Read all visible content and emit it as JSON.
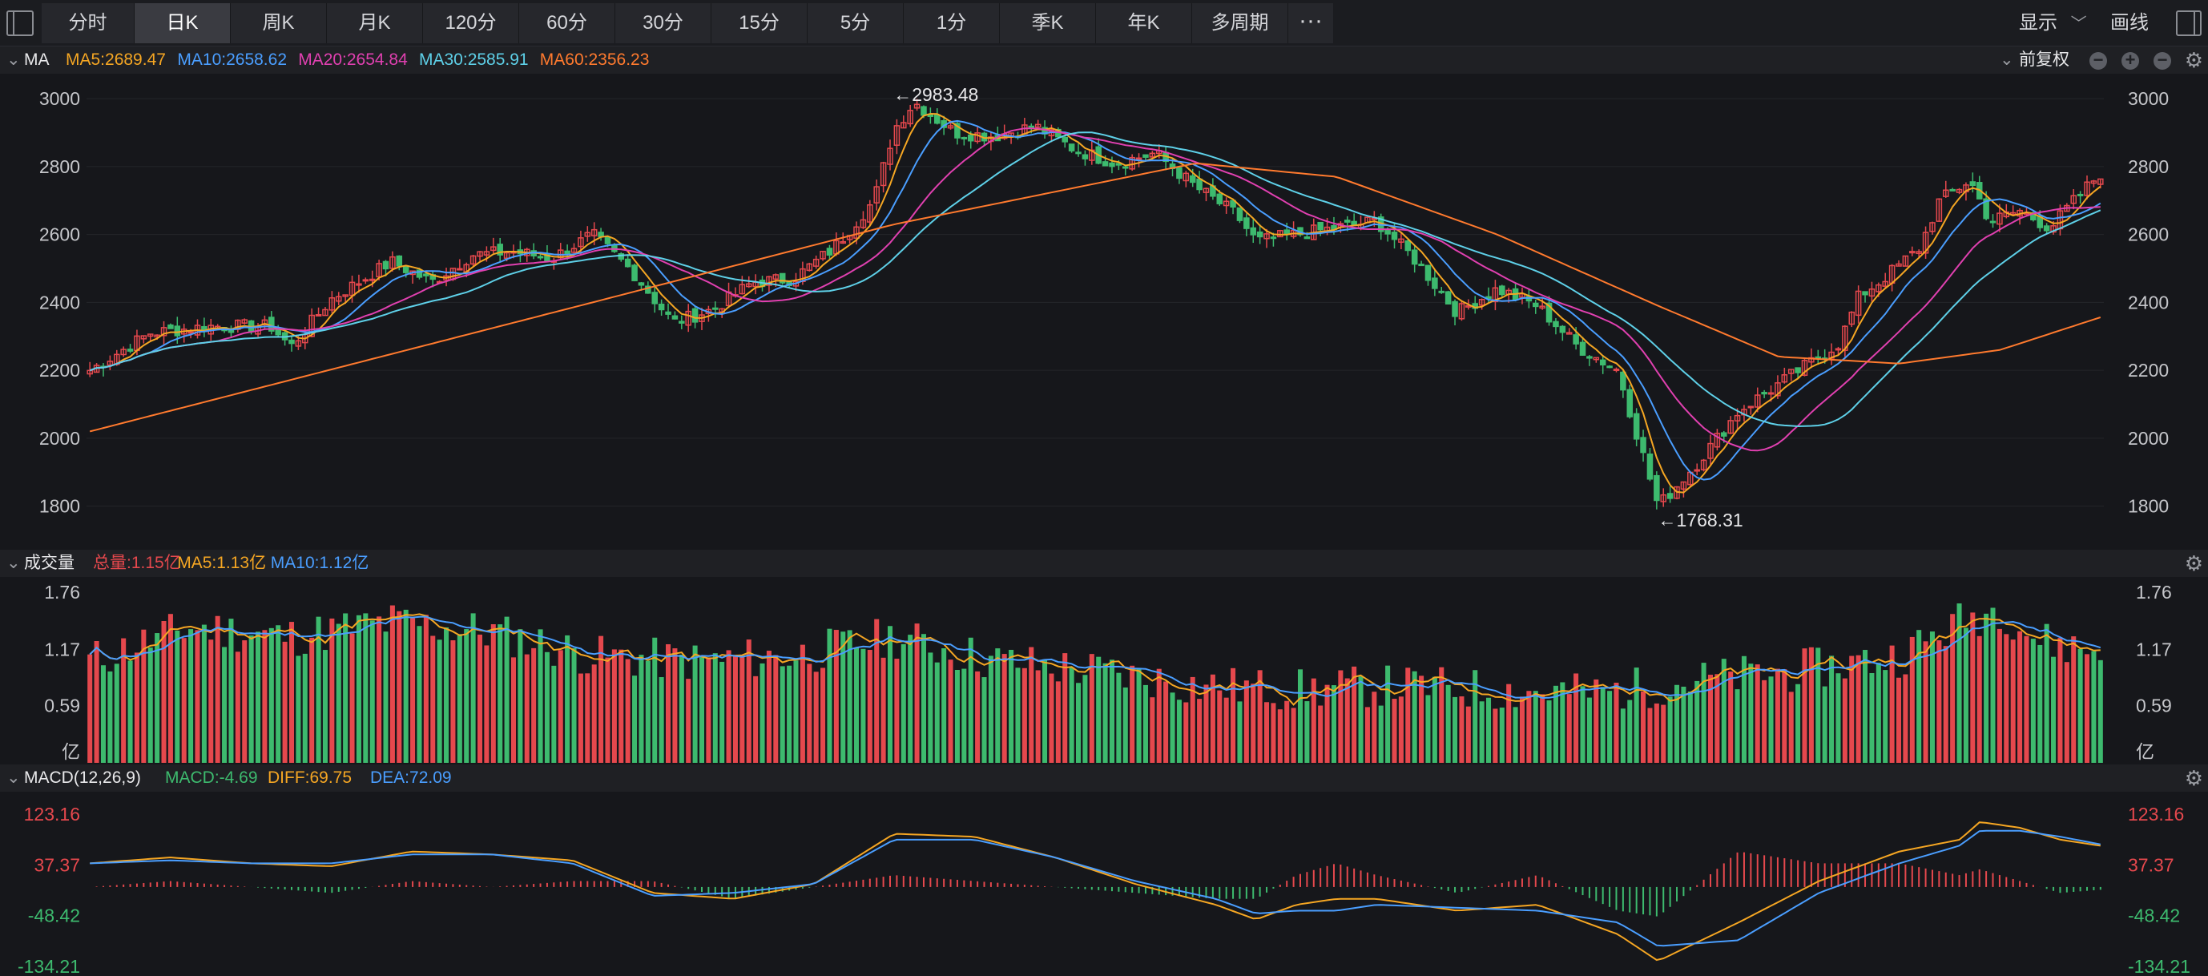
{
  "toolbar": {
    "tabs": [
      "分时",
      "日K",
      "周K",
      "月K",
      "120分",
      "60分",
      "30分",
      "15分",
      "5分",
      "1分",
      "季K",
      "年K",
      "多周期"
    ],
    "active": "日K",
    "more_icon": "ellipsis-icon",
    "display_label": "显示",
    "draw_label": "画线"
  },
  "main_panel": {
    "indicator": "MA",
    "legend": [
      {
        "label": "MA5:2689.47",
        "color": "#f5a623"
      },
      {
        "label": "MA10:2658.62",
        "color": "#4a9eff"
      },
      {
        "label": "MA20:2654.84",
        "color": "#e040b0"
      },
      {
        "label": "MA30:2585.91",
        "color": "#5ed0e8"
      },
      {
        "label": "MA60:2356.23",
        "color": "#ff7a2e"
      }
    ],
    "adjust_label": "前复权"
  },
  "volume_panel": {
    "title": "成交量",
    "legend": [
      {
        "label": "总量:1.15亿",
        "color": "#e5484d"
      },
      {
        "label": "MA5:1.13亿",
        "color": "#f5a623"
      },
      {
        "label": "MA10:1.12亿",
        "color": "#4a9eff"
      }
    ]
  },
  "macd_panel": {
    "title": "MACD(12,26,9)",
    "legend": [
      {
        "label": "MACD:-4.69",
        "color": "#3dba6e"
      },
      {
        "label": "DIFF:69.75",
        "color": "#f5a623"
      },
      {
        "label": "DEA:72.09",
        "color": "#4a9eff"
      }
    ]
  },
  "colors": {
    "up": "#e5484d",
    "down": "#3dba6e"
  },
  "chart_data": [
    {
      "type": "candlestick",
      "title": "",
      "ylim": [
        1700,
        3050
      ],
      "yticks": [
        1800,
        2000,
        2200,
        2400,
        2600,
        2800,
        3000
      ],
      "annotations": [
        {
          "text": "←2983.48",
          "value": 2983.48,
          "at": 0.4
        },
        {
          "text": "←1768.31",
          "value": 1768.31,
          "at": 0.779
        }
      ],
      "close_path": [
        [
          0,
          2200
        ],
        [
          0.03,
          2310
        ],
        [
          0.06,
          2330
        ],
        [
          0.09,
          2330
        ],
        [
          0.1,
          2270
        ],
        [
          0.12,
          2410
        ],
        [
          0.15,
          2520
        ],
        [
          0.17,
          2460
        ],
        [
          0.19,
          2540
        ],
        [
          0.21,
          2550
        ],
        [
          0.23,
          2530
        ],
        [
          0.25,
          2600
        ],
        [
          0.27,
          2490
        ],
        [
          0.29,
          2340
        ],
        [
          0.31,
          2380
        ],
        [
          0.33,
          2460
        ],
        [
          0.35,
          2470
        ],
        [
          0.37,
          2560
        ],
        [
          0.39,
          2700
        ],
        [
          0.4,
          2910
        ],
        [
          0.41,
          2990
        ],
        [
          0.43,
          2900
        ],
        [
          0.45,
          2890
        ],
        [
          0.47,
          2920
        ],
        [
          0.49,
          2850
        ],
        [
          0.51,
          2810
        ],
        [
          0.53,
          2840
        ],
        [
          0.55,
          2740
        ],
        [
          0.57,
          2660
        ],
        [
          0.58,
          2580
        ],
        [
          0.6,
          2600
        ],
        [
          0.62,
          2620
        ],
        [
          0.64,
          2640
        ],
        [
          0.66,
          2520
        ],
        [
          0.68,
          2370
        ],
        [
          0.7,
          2440
        ],
        [
          0.72,
          2390
        ],
        [
          0.74,
          2270
        ],
        [
          0.76,
          2200
        ],
        [
          0.77,
          2000
        ],
        [
          0.78,
          1800
        ],
        [
          0.8,
          1930
        ],
        [
          0.82,
          2080
        ],
        [
          0.85,
          2200
        ],
        [
          0.87,
          2280
        ],
        [
          0.88,
          2420
        ],
        [
          0.89,
          2460
        ],
        [
          0.91,
          2560
        ],
        [
          0.92,
          2700
        ],
        [
          0.935,
          2760
        ],
        [
          0.945,
          2640
        ],
        [
          0.96,
          2670
        ],
        [
          0.975,
          2620
        ],
        [
          0.99,
          2720
        ],
        [
          1.0,
          2780
        ]
      ],
      "ma5_last": 2689.47,
      "ma10_last": 2658.62,
      "ma20_last": 2654.84,
      "ma30_last": 2585.91,
      "ma60_path": [
        [
          0,
          2020
        ],
        [
          0.25,
          2400
        ],
        [
          0.4,
          2630
        ],
        [
          0.55,
          2810
        ],
        [
          0.62,
          2770
        ],
        [
          0.7,
          2600
        ],
        [
          0.78,
          2390
        ],
        [
          0.84,
          2240
        ],
        [
          0.9,
          2220
        ],
        [
          0.95,
          2260
        ],
        [
          1.0,
          2356.23
        ]
      ]
    },
    {
      "type": "bar",
      "title": "成交量",
      "ylim": [
        0,
        1.85
      ],
      "tick_labels": [
        "1.76",
        "1.17",
        "0.59",
        "亿"
      ],
      "tick_values": [
        1.76,
        1.17,
        0.59,
        0
      ],
      "volume_path": [
        [
          0,
          1.05
        ],
        [
          0.05,
          1.4
        ],
        [
          0.1,
          1.3
        ],
        [
          0.15,
          1.45
        ],
        [
          0.2,
          1.35
        ],
        [
          0.25,
          1.1
        ],
        [
          0.3,
          1.05
        ],
        [
          0.35,
          1.1
        ],
        [
          0.4,
          1.3
        ],
        [
          0.45,
          1.05
        ],
        [
          0.5,
          0.95
        ],
        [
          0.55,
          0.8
        ],
        [
          0.6,
          0.75
        ],
        [
          0.65,
          0.8
        ],
        [
          0.7,
          0.75
        ],
        [
          0.75,
          0.72
        ],
        [
          0.8,
          0.85
        ],
        [
          0.85,
          0.95
        ],
        [
          0.9,
          1.1
        ],
        [
          0.93,
          1.45
        ],
        [
          0.95,
          1.6
        ],
        [
          0.97,
          1.25
        ],
        [
          1.0,
          1.15
        ]
      ],
      "last_value": 1.15,
      "ma5_last": 1.13,
      "ma10_last": 1.12
    },
    {
      "type": "line+histogram",
      "title": "MACD(12,26,9)",
      "ylim": [
        -134.21,
        123.16
      ],
      "tick_labels": [
        "123.16",
        "37.37",
        "-48.42",
        "-134.21"
      ],
      "tick_values": [
        123.16,
        37.37,
        -48.42,
        -134.21
      ],
      "diff_path": [
        [
          0,
          40
        ],
        [
          0.04,
          50
        ],
        [
          0.08,
          40
        ],
        [
          0.12,
          35
        ],
        [
          0.16,
          60
        ],
        [
          0.2,
          55
        ],
        [
          0.24,
          45
        ],
        [
          0.28,
          -10
        ],
        [
          0.32,
          -20
        ],
        [
          0.36,
          5
        ],
        [
          0.4,
          90
        ],
        [
          0.44,
          85
        ],
        [
          0.48,
          50
        ],
        [
          0.52,
          5
        ],
        [
          0.56,
          -30
        ],
        [
          0.58,
          -55
        ],
        [
          0.6,
          -30
        ],
        [
          0.62,
          -20
        ],
        [
          0.64,
          -20
        ],
        [
          0.68,
          -40
        ],
        [
          0.72,
          -30
        ],
        [
          0.76,
          -80
        ],
        [
          0.78,
          -125
        ],
        [
          0.82,
          -60
        ],
        [
          0.86,
          10
        ],
        [
          0.9,
          60
        ],
        [
          0.93,
          80
        ],
        [
          0.94,
          110
        ],
        [
          0.96,
          100
        ],
        [
          0.98,
          80
        ],
        [
          1.0,
          69.75
        ]
      ],
      "dea_path": [
        [
          0,
          40
        ],
        [
          0.04,
          45
        ],
        [
          0.08,
          40
        ],
        [
          0.12,
          40
        ],
        [
          0.16,
          55
        ],
        [
          0.2,
          55
        ],
        [
          0.24,
          40
        ],
        [
          0.28,
          -15
        ],
        [
          0.32,
          -10
        ],
        [
          0.36,
          5
        ],
        [
          0.4,
          80
        ],
        [
          0.44,
          80
        ],
        [
          0.48,
          50
        ],
        [
          0.52,
          10
        ],
        [
          0.56,
          -20
        ],
        [
          0.58,
          -45
        ],
        [
          0.6,
          -40
        ],
        [
          0.62,
          -40
        ],
        [
          0.64,
          -30
        ],
        [
          0.68,
          -35
        ],
        [
          0.72,
          -40
        ],
        [
          0.76,
          -60
        ],
        [
          0.78,
          -100
        ],
        [
          0.82,
          -90
        ],
        [
          0.86,
          -10
        ],
        [
          0.9,
          40
        ],
        [
          0.93,
          70
        ],
        [
          0.94,
          95
        ],
        [
          0.96,
          95
        ],
        [
          0.98,
          85
        ],
        [
          1.0,
          72.09
        ]
      ],
      "macd_last": -4.69,
      "diff_last": 69.75,
      "dea_last": 72.09
    }
  ]
}
